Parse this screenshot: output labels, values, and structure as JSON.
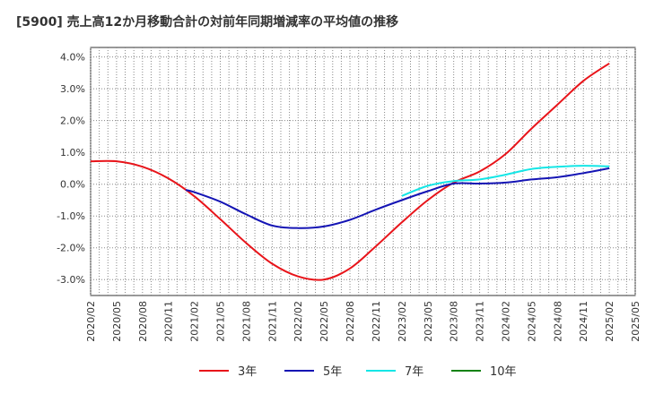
{
  "chart_data": {
    "type": "line",
    "title": "[5900]  売上高12か月移動合計の対前年同期増減率の平均値の推移",
    "xlabel": "",
    "ylabel": "",
    "ylim": [
      -3.5,
      4.3
    ],
    "y_ticks": [
      4.0,
      3.0,
      2.0,
      1.0,
      0.0,
      -1.0,
      -2.0,
      -3.0
    ],
    "y_tick_labels": [
      "4.0%",
      "3.0%",
      "2.0%",
      "1.0%",
      "0.0%",
      "-1.0%",
      "-2.0%",
      "-3.0%"
    ],
    "x_range": [
      "2020/02",
      "2025/05"
    ],
    "x_tick_labels": [
      "2020/02",
      "2020/05",
      "2020/08",
      "2020/11",
      "2021/02",
      "2021/05",
      "2021/08",
      "2021/11",
      "2022/02",
      "2022/05",
      "2022/08",
      "2022/11",
      "2023/02",
      "2023/05",
      "2023/08",
      "2023/11",
      "2024/02",
      "2024/05",
      "2024/08",
      "2024/11",
      "2025/02",
      "2025/05"
    ],
    "grid": true,
    "legend_position": "bottom",
    "series": [
      {
        "name": "3年",
        "color": "#e8141a",
        "x": [
          "2020/02",
          "2020/05",
          "2020/08",
          "2020/11",
          "2021/02",
          "2021/05",
          "2021/08",
          "2021/11",
          "2022/02",
          "2022/05",
          "2022/08",
          "2022/11",
          "2023/02",
          "2023/05",
          "2023/08",
          "2023/11",
          "2024/02",
          "2024/05",
          "2024/08",
          "2024/11",
          "2025/02"
        ],
        "values": [
          0.72,
          0.72,
          0.55,
          0.18,
          -0.38,
          -1.1,
          -1.85,
          -2.5,
          -2.9,
          -3.0,
          -2.65,
          -1.95,
          -1.2,
          -0.5,
          0.05,
          0.4,
          0.95,
          1.75,
          2.5,
          3.25,
          3.8
        ]
      },
      {
        "name": "5年",
        "color": "#1414b4",
        "x": [
          "2021/01",
          "2021/02",
          "2021/05",
          "2021/08",
          "2021/11",
          "2022/02",
          "2022/05",
          "2022/08",
          "2022/11",
          "2023/02",
          "2023/05",
          "2023/08",
          "2023/11",
          "2024/02",
          "2024/05",
          "2024/08",
          "2024/11",
          "2025/02"
        ],
        "values": [
          -0.18,
          -0.25,
          -0.55,
          -0.95,
          -1.3,
          -1.38,
          -1.33,
          -1.12,
          -0.8,
          -0.5,
          -0.22,
          0.02,
          0.02,
          0.05,
          0.15,
          0.22,
          0.35,
          0.5
        ]
      },
      {
        "name": "7年",
        "color": "#14e6e6",
        "x": [
          "2023/02",
          "2023/05",
          "2023/08",
          "2023/11",
          "2024/02",
          "2024/05",
          "2024/08",
          "2024/11",
          "2025/02"
        ],
        "values": [
          -0.37,
          -0.05,
          0.1,
          0.15,
          0.3,
          0.48,
          0.55,
          0.58,
          0.56
        ]
      },
      {
        "name": "10年",
        "color": "#148214",
        "x": [],
        "values": []
      }
    ]
  }
}
